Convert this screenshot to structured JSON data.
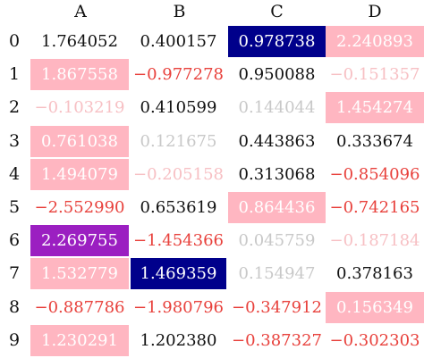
{
  "columns": [
    "A",
    "B",
    "C",
    "D"
  ],
  "rows": [
    {
      "index": "0",
      "cells": [
        {
          "text": "1.764052",
          "bg": "",
          "fg": "#111111"
        },
        {
          "text": "0.400157",
          "bg": "",
          "fg": "#111111"
        },
        {
          "text": "0.978738",
          "bg": "#00008b",
          "fg": "#ffffff"
        },
        {
          "text": "2.240893",
          "bg": "#ffb6c1",
          "fg": "#ffffff"
        }
      ]
    },
    {
      "index": "1",
      "cells": [
        {
          "text": "1.867558",
          "bg": "#ffb6c1",
          "fg": "#ffffff"
        },
        {
          "text": "−0.977278",
          "bg": "",
          "fg": "#e8413c"
        },
        {
          "text": "0.950088",
          "bg": "",
          "fg": "#111111"
        },
        {
          "text": "−0.151357",
          "bg": "",
          "fg": "#f7c0c4"
        }
      ]
    },
    {
      "index": "2",
      "cells": [
        {
          "text": "−0.103219",
          "bg": "",
          "fg": "#f7c0c4"
        },
        {
          "text": "0.410599",
          "bg": "",
          "fg": "#111111"
        },
        {
          "text": "0.144044",
          "bg": "",
          "fg": "#c8c8c8"
        },
        {
          "text": "1.454274",
          "bg": "#ffb6c1",
          "fg": "#ffffff"
        }
      ]
    },
    {
      "index": "3",
      "cells": [
        {
          "text": "0.761038",
          "bg": "#ffb6c1",
          "fg": "#ffffff"
        },
        {
          "text": "0.121675",
          "bg": "",
          "fg": "#c8c8c8"
        },
        {
          "text": "0.443863",
          "bg": "",
          "fg": "#111111"
        },
        {
          "text": "0.333674",
          "bg": "",
          "fg": "#111111"
        }
      ]
    },
    {
      "index": "4",
      "cells": [
        {
          "text": "1.494079",
          "bg": "#ffb6c1",
          "fg": "#ffffff"
        },
        {
          "text": "−0.205158",
          "bg": "",
          "fg": "#f7c0c4"
        },
        {
          "text": "0.313068",
          "bg": "",
          "fg": "#111111"
        },
        {
          "text": "−0.854096",
          "bg": "",
          "fg": "#e8413c"
        }
      ]
    },
    {
      "index": "5",
      "cells": [
        {
          "text": "−2.552990",
          "bg": "",
          "fg": "#e8413c"
        },
        {
          "text": "0.653619",
          "bg": "",
          "fg": "#111111"
        },
        {
          "text": "0.864436",
          "bg": "#ffb6c1",
          "fg": "#ffffff"
        },
        {
          "text": "−0.742165",
          "bg": "",
          "fg": "#e8413c"
        }
      ]
    },
    {
      "index": "6",
      "cells": [
        {
          "text": "2.269755",
          "bg": "#9b1fc1",
          "fg": "#ffffff"
        },
        {
          "text": "−1.454366",
          "bg": "",
          "fg": "#e8413c"
        },
        {
          "text": "0.045759",
          "bg": "",
          "fg": "#c8c8c8"
        },
        {
          "text": "−0.187184",
          "bg": "",
          "fg": "#f7c0c4"
        }
      ]
    },
    {
      "index": "7",
      "cells": [
        {
          "text": "1.532779",
          "bg": "#ffb6c1",
          "fg": "#ffffff"
        },
        {
          "text": "1.469359",
          "bg": "#00008b",
          "fg": "#ffffff"
        },
        {
          "text": "0.154947",
          "bg": "",
          "fg": "#c8c8c8"
        },
        {
          "text": "0.378163",
          "bg": "",
          "fg": "#111111"
        }
      ]
    },
    {
      "index": "8",
      "cells": [
        {
          "text": "−0.887786",
          "bg": "",
          "fg": "#e8413c"
        },
        {
          "text": "−1.980796",
          "bg": "",
          "fg": "#e8413c"
        },
        {
          "text": "−0.347912",
          "bg": "",
          "fg": "#e8413c"
        },
        {
          "text": "0.156349",
          "bg": "#ffb6c1",
          "fg": "#ffffff"
        }
      ]
    },
    {
      "index": "9",
      "cells": [
        {
          "text": "1.230291",
          "bg": "#ffb6c1",
          "fg": "#ffffff"
        },
        {
          "text": "1.202380",
          "bg": "",
          "fg": "#111111"
        },
        {
          "text": "−0.387327",
          "bg": "",
          "fg": "#e8413c"
        },
        {
          "text": "−0.302303",
          "bg": "",
          "fg": "#e8413c"
        }
      ]
    }
  ]
}
